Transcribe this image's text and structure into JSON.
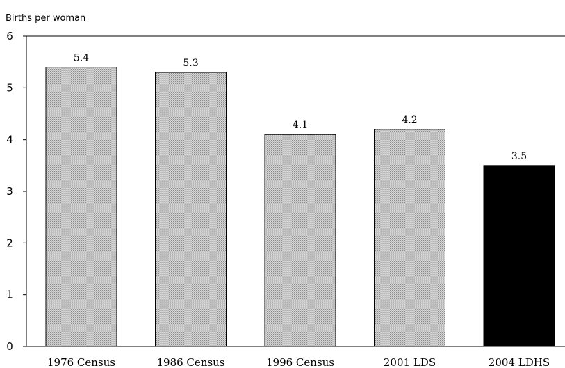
{
  "chart_data": {
    "type": "bar",
    "title": "",
    "xlabel": "",
    "ylabel": "Births per woman",
    "ylim": [
      0,
      6
    ],
    "yticks": [
      0,
      1,
      2,
      3,
      4,
      5,
      6
    ],
    "grid": false,
    "legend": "none",
    "categories": [
      "1976 Census",
      "1986 Census",
      "1996 Census",
      "2001 LDS",
      "2004 LDHS"
    ],
    "values": [
      5.4,
      5.3,
      4.1,
      4.2,
      3.5
    ],
    "value_labels": [
      "5.4",
      "5.3",
      "4.1",
      "4.2",
      "3.5"
    ],
    "bar_styles": [
      "dotted",
      "dotted",
      "dotted",
      "dotted",
      "solid"
    ],
    "colors": {
      "dotted_fill": "#d9d9d9",
      "dot": "#8c8c8c",
      "solid_fill": "#000000",
      "axis": "#000000"
    }
  }
}
